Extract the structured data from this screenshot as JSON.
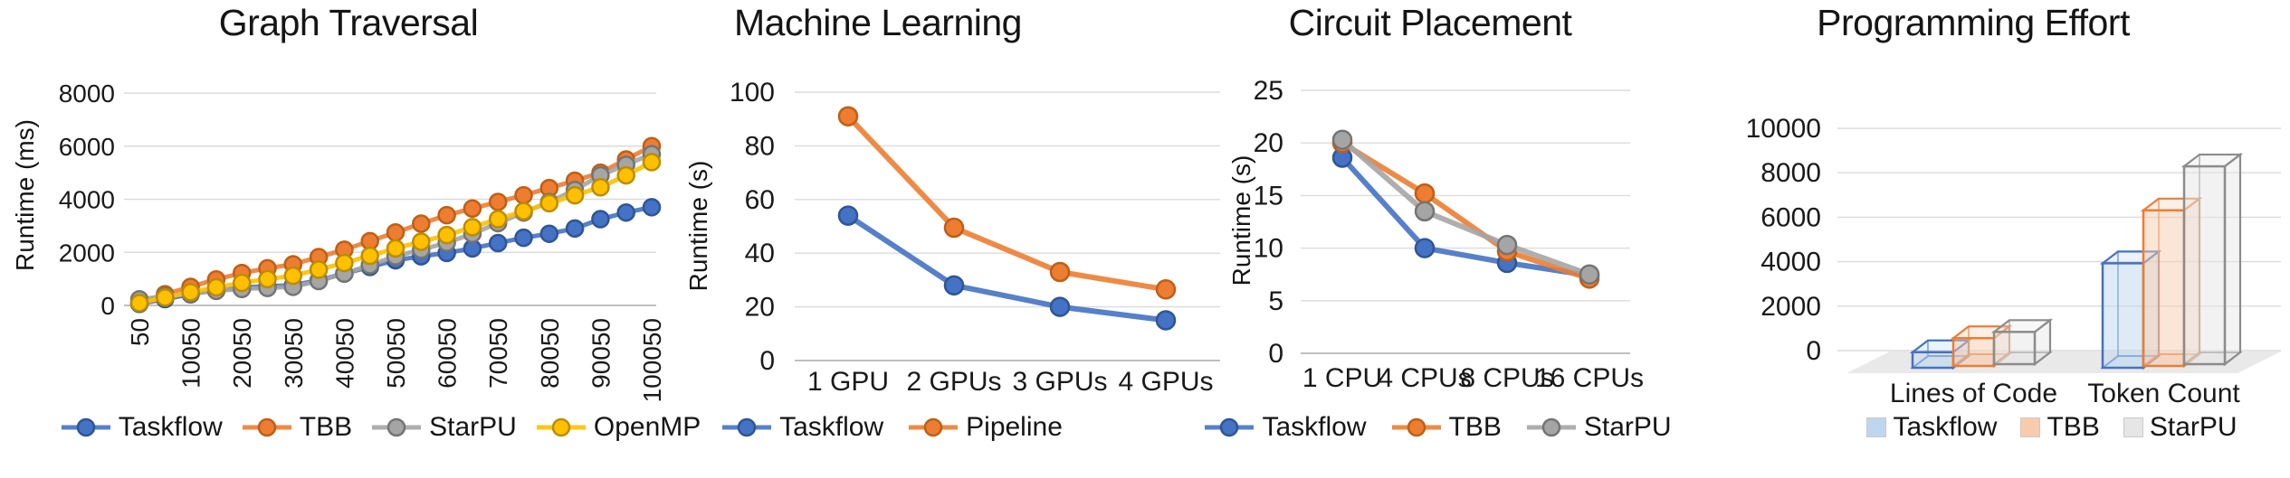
{
  "colors": {
    "grid": "#DBDBDB",
    "axis": "#BFBFBF",
    "text": "#1A1A1A",
    "background": "#FFFFFF"
  },
  "chart_data": [
    {
      "type": "line",
      "title": "Graph Traversal",
      "xlabel": "",
      "ylabel": "Runtime (ms)",
      "ylim": [
        0,
        8000
      ],
      "yticks": [
        0,
        2000,
        4000,
        6000,
        8000
      ],
      "grid": true,
      "legend_position": "bottom",
      "x": [
        50,
        5050,
        10050,
        15050,
        20050,
        25050,
        30050,
        35050,
        40050,
        45050,
        50050,
        55050,
        60050,
        65050,
        70050,
        75050,
        80050,
        85050,
        90050,
        95050,
        100050
      ],
      "xtick_labels": [
        "50",
        "10050",
        "20050",
        "30050",
        "40050",
        "50050",
        "60050",
        "70050",
        "80050",
        "90050",
        "100050"
      ],
      "series": [
        {
          "name": "Taskflow",
          "color": "#4472C4",
          "edge": "#2E5596",
          "values": [
            60,
            240,
            420,
            580,
            680,
            720,
            760,
            950,
            1200,
            1450,
            1700,
            1850,
            1980,
            2150,
            2350,
            2550,
            2700,
            2900,
            3250,
            3500,
            3700
          ]
        },
        {
          "name": "TBB",
          "color": "#ED7D31",
          "edge": "#BF5E17",
          "values": [
            120,
            420,
            700,
            980,
            1220,
            1400,
            1550,
            1820,
            2100,
            2420,
            2750,
            3080,
            3400,
            3650,
            3900,
            4150,
            4420,
            4700,
            5000,
            5500,
            6000
          ]
        },
        {
          "name": "StarPU",
          "color": "#A5A5A5",
          "edge": "#747474",
          "values": [
            230,
            340,
            450,
            550,
            620,
            660,
            700,
            920,
            1200,
            1520,
            1850,
            2100,
            2360,
            2700,
            3100,
            3500,
            3900,
            4350,
            4900,
            5300,
            5700
          ]
        },
        {
          "name": "OpenMP",
          "color": "#FFC000",
          "edge": "#BC8C00",
          "values": [
            90,
            300,
            500,
            680,
            850,
            990,
            1120,
            1350,
            1600,
            1870,
            2150,
            2400,
            2650,
            2950,
            3250,
            3550,
            3850,
            4150,
            4450,
            4900,
            5400
          ]
        }
      ]
    },
    {
      "type": "line",
      "title": "Machine Learning",
      "xlabel": "",
      "ylabel": "Runtime (s)",
      "ylim": [
        0,
        100
      ],
      "yticks": [
        0,
        20,
        40,
        60,
        80,
        100
      ],
      "grid": true,
      "legend_position": "bottom",
      "categories": [
        "1 GPU",
        "2 GPUs",
        "3 GPUs",
        "4 GPUs"
      ],
      "series": [
        {
          "name": "Taskflow",
          "color": "#4472C4",
          "edge": "#2E5596",
          "values": [
            54,
            28,
            20,
            15
          ]
        },
        {
          "name": "Pipeline",
          "color": "#ED7D31",
          "edge": "#BF5E17",
          "values": [
            91,
            49.5,
            33,
            26.5
          ]
        }
      ]
    },
    {
      "type": "line",
      "title": "Circuit Placement",
      "xlabel": "",
      "ylabel": "Runtime (s)",
      "ylim": [
        0,
        25
      ],
      "yticks": [
        0,
        5,
        10,
        15,
        20,
        25
      ],
      "grid": true,
      "legend_position": "bottom",
      "categories": [
        "1 CPU",
        "4 CPUs",
        "8 CPUs",
        "16 CPUs"
      ],
      "series": [
        {
          "name": "Taskflow",
          "color": "#4472C4",
          "edge": "#2E5596",
          "values": [
            18.6,
            10,
            8.6,
            7.4
          ]
        },
        {
          "name": "TBB",
          "color": "#ED7D31",
          "edge": "#BF5E17",
          "values": [
            20,
            15.2,
            9.7,
            7.1
          ]
        },
        {
          "name": "StarPU",
          "color": "#A5A5A5",
          "edge": "#747474",
          "values": [
            20.3,
            13.5,
            10.3,
            7.5
          ]
        }
      ]
    },
    {
      "type": "bar3d",
      "title": "Programming Effort",
      "xlabel": "",
      "ylabel": "",
      "ylim": [
        0,
        10000
      ],
      "yticks": [
        0,
        2000,
        4000,
        6000,
        8000,
        10000
      ],
      "grid": true,
      "legend_position": "bottom",
      "categories": [
        "Lines of Code",
        "Token Count"
      ],
      "series": [
        {
          "name": "Taskflow",
          "color": "#4472C4",
          "fill": "#BDD7EE",
          "values": [
            700,
            4700
          ]
        },
        {
          "name": "TBB",
          "color": "#ED7D31",
          "fill": "#F8CBAD",
          "values": [
            1250,
            7000
          ]
        },
        {
          "name": "StarPU",
          "color": "#8C8C8C",
          "fill": "#E7E6E6",
          "values": [
            1450,
            8900
          ]
        }
      ]
    }
  ]
}
